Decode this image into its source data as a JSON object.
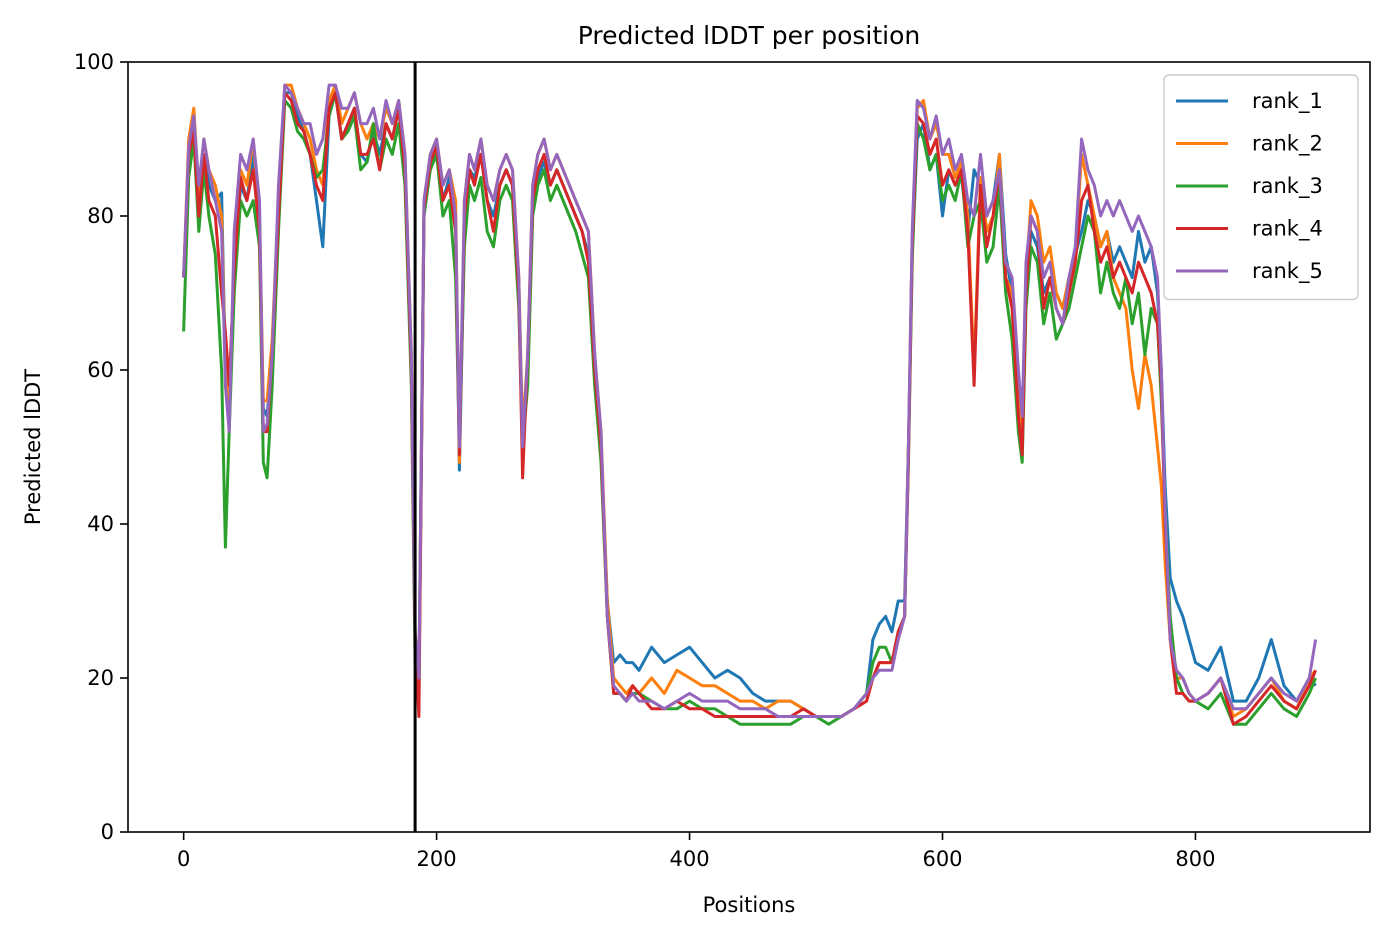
{
  "chart_data": {
    "type": "line",
    "title": "Predicted lDDT per position",
    "xlabel": "Positions",
    "ylabel": "Predicted lDDT",
    "xlim": [
      -44,
      938
    ],
    "ylim": [
      0,
      100
    ],
    "xticks": [
      0,
      200,
      400,
      600,
      800
    ],
    "yticks": [
      0,
      20,
      40,
      60,
      80,
      100
    ],
    "grid": false,
    "legend_position": "top-right",
    "vline": {
      "x": 183,
      "color": "#000000"
    },
    "x": [
      0,
      4,
      8,
      12,
      16,
      20,
      25,
      30,
      33,
      36,
      40,
      45,
      50,
      55,
      60,
      63,
      66,
      70,
      75,
      80,
      85,
      90,
      95,
      100,
      105,
      110,
      115,
      120,
      125,
      130,
      135,
      140,
      145,
      150,
      155,
      160,
      165,
      170,
      175,
      180,
      183,
      186,
      190,
      195,
      200,
      205,
      210,
      215,
      218,
      222,
      226,
      230,
      235,
      240,
      245,
      250,
      255,
      260,
      265,
      268,
      272,
      276,
      280,
      285,
      290,
      295,
      300,
      305,
      310,
      315,
      320,
      325,
      330,
      335,
      340,
      345,
      350,
      355,
      360,
      370,
      380,
      390,
      400,
      410,
      420,
      430,
      440,
      450,
      460,
      470,
      480,
      490,
      500,
      510,
      520,
      530,
      540,
      545,
      550,
      555,
      560,
      565,
      570,
      573,
      576,
      580,
      585,
      590,
      595,
      600,
      605,
      610,
      615,
      620,
      625,
      630,
      635,
      640,
      645,
      650,
      655,
      660,
      663,
      666,
      670,
      675,
      680,
      685,
      690,
      695,
      700,
      705,
      710,
      715,
      720,
      725,
      730,
      735,
      740,
      745,
      750,
      755,
      760,
      765,
      770,
      773,
      776,
      780,
      785,
      790,
      795,
      800,
      810,
      820,
      830,
      840,
      850,
      860,
      870,
      880,
      890,
      895
    ],
    "series": [
      {
        "name": "rank_1",
        "color": "#1f77b4",
        "values": [
          72,
          86,
          92,
          80,
          88,
          84,
          82,
          83,
          60,
          55,
          72,
          84,
          82,
          88,
          78,
          55,
          54,
          62,
          80,
          96,
          96,
          93,
          91,
          88,
          82,
          76,
          93,
          96,
          90,
          92,
          94,
          88,
          87,
          91,
          88,
          92,
          90,
          94,
          85,
          60,
          25,
          20,
          80,
          87,
          88,
          82,
          85,
          80,
          47,
          78,
          86,
          85,
          88,
          82,
          80,
          84,
          86,
          84,
          70,
          50,
          60,
          82,
          85,
          87,
          84,
          86,
          84,
          82,
          80,
          78,
          75,
          60,
          50,
          30,
          22,
          23,
          22,
          22,
          21,
          24,
          22,
          23,
          24,
          22,
          20,
          21,
          20,
          18,
          17,
          17,
          17,
          16,
          15,
          15,
          15,
          16,
          18,
          25,
          27,
          28,
          26,
          30,
          30,
          50,
          75,
          90,
          92,
          86,
          88,
          80,
          86,
          84,
          85,
          78,
          86,
          84,
          80,
          82,
          88,
          75,
          70,
          55,
          50,
          70,
          78,
          76,
          70,
          72,
          70,
          68,
          72,
          75,
          78,
          82,
          80,
          76,
          78,
          74,
          76,
          74,
          72,
          78,
          74,
          76,
          70,
          60,
          45,
          33,
          30,
          28,
          25,
          22,
          21,
          24,
          17,
          17,
          20,
          25,
          19,
          17,
          20,
          19
        ]
      },
      {
        "name": "rank_2",
        "color": "#ff7f0e",
        "values": [
          72,
          90,
          94,
          83,
          90,
          86,
          84,
          80,
          60,
          56,
          74,
          86,
          84,
          90,
          80,
          56,
          56,
          64,
          82,
          97,
          97,
          94,
          92,
          90,
          86,
          84,
          95,
          97,
          92,
          94,
          96,
          92,
          90,
          92,
          90,
          94,
          92,
          95,
          88,
          62,
          26,
          20,
          82,
          88,
          90,
          84,
          86,
          82,
          48,
          82,
          88,
          86,
          90,
          84,
          82,
          86,
          88,
          86,
          72,
          52,
          62,
          84,
          88,
          90,
          86,
          88,
          86,
          84,
          82,
          80,
          78,
          62,
          52,
          30,
          20,
          19,
          18,
          19,
          18,
          20,
          18,
          21,
          20,
          19,
          19,
          18,
          17,
          17,
          16,
          17,
          17,
          16,
          15,
          15,
          15,
          16,
          17,
          20,
          22,
          22,
          22,
          25,
          28,
          50,
          77,
          94,
          95,
          90,
          92,
          88,
          88,
          85,
          87,
          80,
          60,
          85,
          78,
          80,
          88,
          72,
          70,
          56,
          50,
          72,
          82,
          80,
          74,
          76,
          70,
          68,
          72,
          75,
          88,
          84,
          80,
          76,
          78,
          72,
          70,
          68,
          60,
          55,
          62,
          58,
          50,
          45,
          35,
          25,
          20,
          20,
          18,
          17,
          18,
          20,
          15,
          16,
          18,
          20,
          17,
          16,
          20,
          21
        ]
      },
      {
        "name": "rank_3",
        "color": "#2ca02c",
        "values": [
          65,
          85,
          90,
          78,
          86,
          80,
          75,
          60,
          37,
          52,
          70,
          82,
          80,
          82,
          76,
          48,
          46,
          58,
          78,
          95,
          94,
          91,
          90,
          88,
          85,
          86,
          93,
          96,
          90,
          91,
          93,
          86,
          87,
          92,
          86,
          90,
          88,
          92,
          84,
          58,
          22,
          18,
          80,
          86,
          88,
          80,
          82,
          72,
          50,
          76,
          84,
          82,
          85,
          78,
          76,
          82,
          84,
          82,
          68,
          50,
          58,
          80,
          84,
          86,
          82,
          84,
          82,
          80,
          78,
          75,
          72,
          58,
          48,
          28,
          18,
          18,
          17,
          18,
          18,
          17,
          16,
          16,
          17,
          16,
          16,
          15,
          14,
          14,
          14,
          14,
          14,
          15,
          15,
          14,
          15,
          16,
          18,
          22,
          24,
          24,
          22,
          26,
          28,
          48,
          74,
          92,
          90,
          86,
          88,
          82,
          84,
          82,
          86,
          76,
          80,
          82,
          74,
          76,
          84,
          70,
          64,
          52,
          48,
          68,
          76,
          74,
          66,
          70,
          64,
          66,
          68,
          72,
          76,
          80,
          78,
          70,
          74,
          70,
          68,
          72,
          66,
          70,
          62,
          68,
          66,
          56,
          42,
          28,
          20,
          18,
          17,
          17,
          16,
          18,
          14,
          14,
          16,
          18,
          16,
          15,
          18,
          20
        ]
      },
      {
        "name": "rank_4",
        "color": "#d62728",
        "values": [
          72,
          88,
          91,
          80,
          88,
          82,
          80,
          70,
          65,
          58,
          73,
          85,
          82,
          86,
          78,
          52,
          52,
          62,
          80,
          96,
          95,
          92,
          91,
          88,
          84,
          82,
          94,
          96,
          90,
          92,
          94,
          88,
          88,
          90,
          86,
          92,
          90,
          94,
          86,
          60,
          25,
          15,
          81,
          87,
          89,
          82,
          84,
          78,
          49,
          80,
          86,
          84,
          88,
          82,
          78,
          84,
          86,
          84,
          70,
          46,
          62,
          82,
          86,
          88,
          84,
          86,
          84,
          82,
          80,
          78,
          74,
          60,
          50,
          28,
          18,
          18,
          17,
          19,
          18,
          16,
          16,
          17,
          16,
          16,
          15,
          15,
          15,
          15,
          15,
          15,
          15,
          16,
          15,
          15,
          15,
          16,
          17,
          20,
          22,
          22,
          22,
          26,
          28,
          48,
          76,
          93,
          92,
          88,
          90,
          84,
          86,
          84,
          86,
          78,
          58,
          84,
          76,
          80,
          86,
          72,
          68,
          54,
          49,
          70,
          80,
          78,
          68,
          72,
          68,
          66,
          70,
          74,
          82,
          84,
          78,
          74,
          76,
          72,
          74,
          72,
          70,
          74,
          72,
          70,
          66,
          58,
          40,
          25,
          18,
          18,
          17,
          17,
          18,
          20,
          14,
          15,
          17,
          19,
          17,
          16,
          19,
          21
        ]
      },
      {
        "name": "rank_5",
        "color": "#9467bd",
        "values": [
          72,
          89,
          93,
          84,
          90,
          86,
          82,
          78,
          58,
          52,
          78,
          88,
          86,
          90,
          82,
          52,
          53,
          62,
          84,
          97,
          96,
          94,
          92,
          92,
          88,
          90,
          97,
          97,
          94,
          94,
          96,
          92,
          92,
          94,
          90,
          95,
          92,
          95,
          88,
          62,
          26,
          20,
          82,
          88,
          90,
          84,
          86,
          80,
          50,
          82,
          88,
          86,
          90,
          84,
          82,
          86,
          88,
          86,
          72,
          50,
          62,
          84,
          88,
          90,
          86,
          88,
          86,
          84,
          82,
          80,
          78,
          62,
          52,
          28,
          19,
          18,
          17,
          18,
          17,
          17,
          16,
          17,
          18,
          17,
          17,
          17,
          16,
          16,
          16,
          15,
          15,
          15,
          15,
          15,
          15,
          16,
          18,
          20,
          21,
          21,
          21,
          25,
          28,
          50,
          78,
          95,
          94,
          90,
          93,
          88,
          90,
          86,
          88,
          82,
          80,
          88,
          80,
          82,
          86,
          74,
          72,
          60,
          54,
          74,
          80,
          78,
          72,
          74,
          68,
          66,
          72,
          76,
          90,
          86,
          84,
          80,
          82,
          80,
          82,
          80,
          78,
          80,
          78,
          76,
          72,
          60,
          42,
          25,
          21,
          20,
          18,
          17,
          18,
          20,
          16,
          16,
          18,
          20,
          18,
          17,
          20,
          25
        ]
      }
    ]
  }
}
